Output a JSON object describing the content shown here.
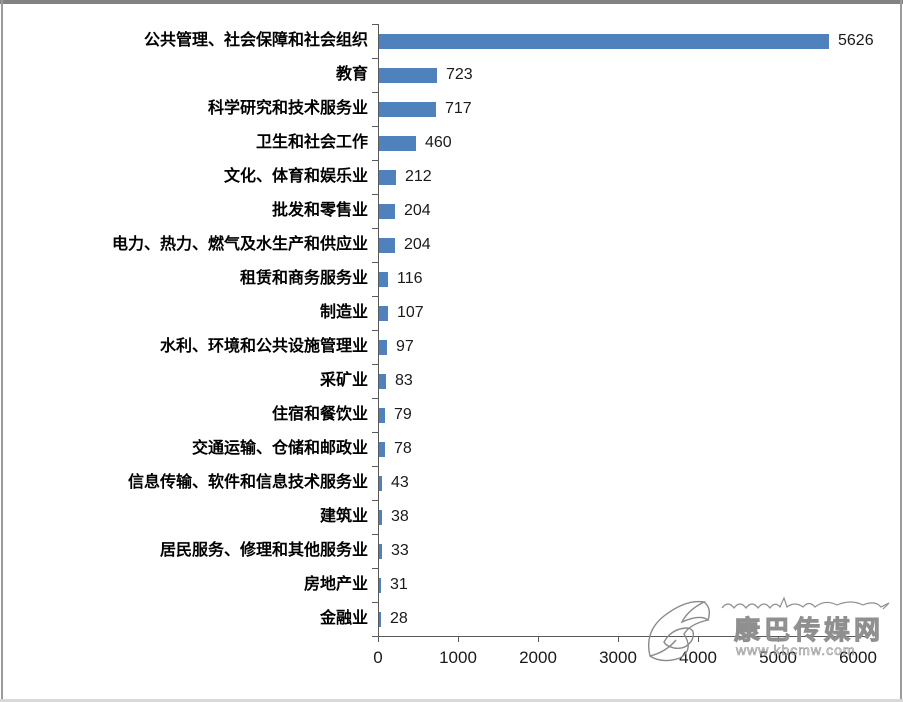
{
  "chart_data": {
    "type": "bar",
    "orientation": "horizontal",
    "title": "",
    "xlabel": "",
    "ylabel": "",
    "categories": [
      "公共管理、社会保障和社会组织",
      "教育",
      "科学研究和技术服务业",
      "卫生和社会工作",
      "文化、体育和娱乐业",
      "批发和零售业",
      "电力、热力、燃气及水生产和供应业",
      "租赁和商务服务业",
      "制造业",
      "水利、环境和公共设施管理业",
      "采矿业",
      "住宿和餐饮业",
      "交通运输、仓储和邮政业",
      "信息传输、软件和信息技术服务业",
      "建筑业",
      "居民服务、修理和其他服务业",
      "房地产业",
      "金融业"
    ],
    "values": [
      5626,
      723,
      717,
      460,
      212,
      204,
      204,
      116,
      107,
      97,
      83,
      79,
      78,
      43,
      38,
      33,
      31,
      28
    ],
    "value_labels_shown": true,
    "xlim": [
      0,
      6000
    ],
    "xticks": [
      0,
      1000,
      2000,
      3000,
      4000,
      5000,
      6000
    ],
    "grid": false,
    "legend": false,
    "bar_color": "#4F81BD",
    "axis_color": "#595959"
  },
  "watermark": {
    "site_name": "康巴传媒网",
    "site_url": "www.kbcmw.com"
  }
}
